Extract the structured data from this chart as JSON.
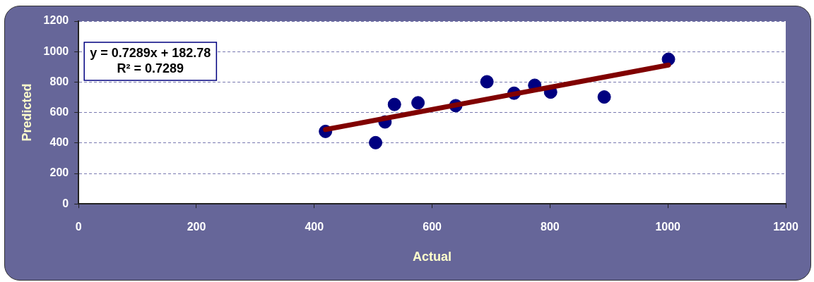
{
  "chart_data": {
    "type": "scatter",
    "xlabel": "Actual",
    "ylabel": "Predicted",
    "xlim": [
      0,
      1200
    ],
    "xticks": [
      0,
      200,
      400,
      600,
      800,
      1000,
      1200
    ],
    "ylim": [
      0,
      1200
    ],
    "yticks": [
      0,
      200,
      400,
      600,
      800,
      1000,
      1200
    ],
    "grid": "y",
    "legend": false,
    "marker": "circle",
    "annotations": [
      "y = 0.7289x + 182.78",
      "R² = 0.7289"
    ],
    "series": [
      {
        "color": "#000080",
        "x": [
          419,
          504,
          520,
          536,
          576,
          640,
          693,
          739,
          774,
          801,
          892,
          1001
        ],
        "values": [
          476,
          402,
          538,
          653,
          664,
          645,
          802,
          727,
          779,
          734,
          702,
          950
        ]
      },
      {
        "type": "line",
        "marker": "none",
        "color": "#800000",
        "x": [
          419,
          1001
        ],
        "values": [
          488,
          912
        ]
      }
    ]
  }
}
